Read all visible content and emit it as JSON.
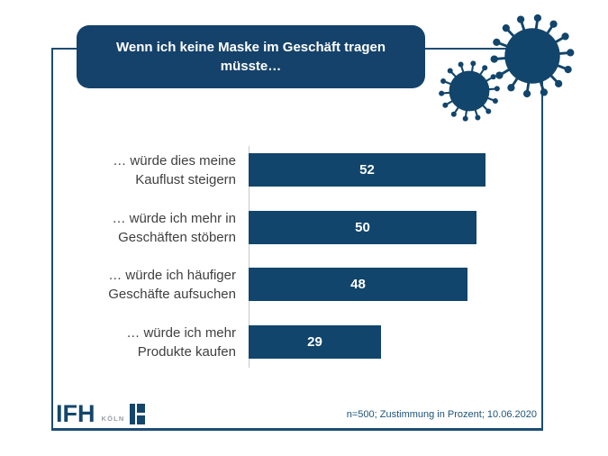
{
  "title": {
    "text": "Wenn ich keine Maske im Geschäft tragen müsste…"
  },
  "chart_data": {
    "type": "bar",
    "orientation": "horizontal",
    "title": "Wenn ich keine Maske im Geschäft tragen müsste…",
    "categories": [
      "… würde dies meine Kauflust steigern",
      "… würde ich mehr in Geschäften stöbern",
      "… würde ich häufiger Geschäfte aufsuchen",
      "… würde ich mehr Produkte kaufen"
    ],
    "categories_lines": [
      [
        "… würde dies meine",
        "Kauflust steigern"
      ],
      [
        "… würde ich mehr in",
        "Geschäften stöbern"
      ],
      [
        "… würde ich häufiger",
        "Geschäfte aufsuchen"
      ],
      [
        "… würde ich mehr",
        "Produkte kaufen"
      ]
    ],
    "values": [
      52,
      50,
      48,
      29
    ],
    "unit": "Prozent (Zustimmung)",
    "xlim": [
      0,
      65
    ],
    "grid": false,
    "legend": false,
    "value_label_position": "center",
    "bar_color": "#11456b"
  },
  "footer": {
    "note": "n=500; Zustimmung in Prozent; 10.06.2020"
  },
  "logo": {
    "text": "IFH",
    "sub": "KÖLN"
  },
  "icons": {
    "virus_large": "coronavirus-icon",
    "virus_small": "coronavirus-icon"
  },
  "colors": {
    "navy": "#12456b",
    "title_background": "#15426a",
    "bar_fill": "#11456b",
    "border": "#1e4d72",
    "category_text": "#3f3f3f",
    "axis_line": "#c9c9c9",
    "footer_text": "#1d5378",
    "logo_sub_gray": "#989ea7",
    "value_text": "#ffffff"
  }
}
